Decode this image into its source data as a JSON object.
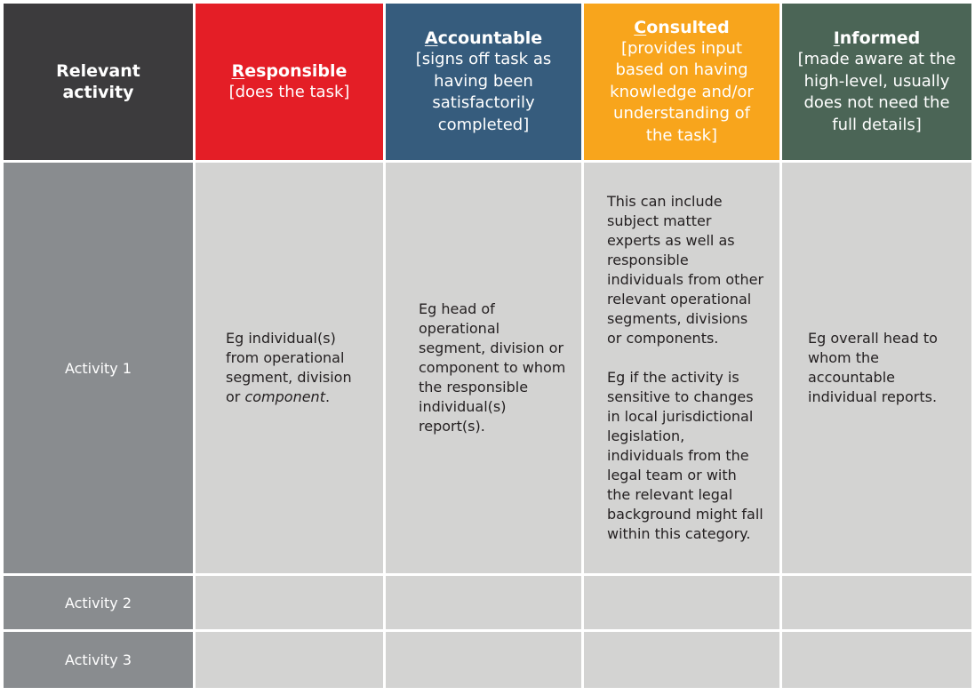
{
  "table": {
    "header": {
      "activity_col": "Relevant activity",
      "responsible": {
        "initial": "R",
        "rest": "esponsible",
        "desc": "[does the task]",
        "color": "#e41e26"
      },
      "accountable": {
        "initial": "A",
        "rest": "ccountable",
        "desc": "[signs off task as having been satisfactorily completed]",
        "color": "#365c7d"
      },
      "consulted": {
        "initial": "C",
        "rest": "onsulted",
        "desc": "[provides input based on having knowledge and/or understanding of the task]",
        "color": "#f8a51c"
      },
      "informed": {
        "initial": "I",
        "rest": "nformed",
        "desc": "[made aware at the high-level, usually does not need the full details]",
        "color": "#4b6556"
      },
      "activity_col_color": "#3c3b3d"
    },
    "rows": [
      {
        "label": "Activity 1",
        "responsible_pre": "Eg individual(s) from operational segment, division or ",
        "responsible_em": "component",
        "responsible_post": ".",
        "accountable": "Eg head of operational segment, division or component to whom the responsible individual(s) report(s).",
        "consulted_p1": "This can include subject matter experts as well as responsible individuals from other relevant operational segments, divisions or components.",
        "consulted_p2": "Eg if the activity is sensitive to changes in local jurisdictional legislation, individuals from the legal team or with the relevant legal background might fall within this category.",
        "informed": "Eg overall head to whom the accountable individual reports."
      },
      {
        "label": "Activity 2"
      },
      {
        "label": "Activity 3"
      }
    ]
  }
}
